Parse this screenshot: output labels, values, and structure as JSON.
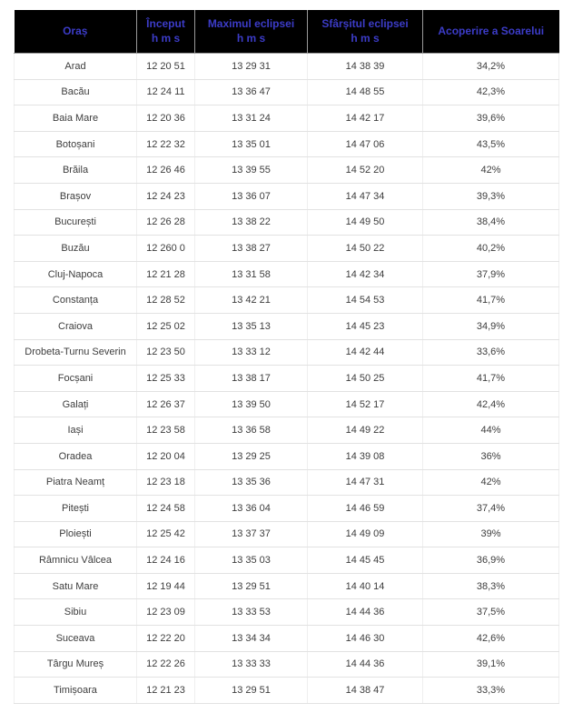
{
  "colors": {
    "header_bg": "#000000",
    "header_text": "#3c3cc8",
    "body_text": "#3d3d3d",
    "grid_horizontal": "#e2e2e2",
    "grid_vertical": "#efefef",
    "header_separator": "#9a9a9a"
  },
  "table": {
    "header": [
      {
        "label": "Oraș",
        "sub": ""
      },
      {
        "label": "Început",
        "sub": "h m s"
      },
      {
        "label": "Maximul eclipsei",
        "sub": "h m s"
      },
      {
        "label": "Sfârșitul eclipsei",
        "sub": "h m s"
      },
      {
        "label": "Acoperire a Soarelui",
        "sub": ""
      }
    ],
    "rows": [
      {
        "city": "Arad",
        "start": "12 20 51",
        "max": "13 29 31",
        "end": "14 38 39",
        "coverage": "34,2%"
      },
      {
        "city": "Bacău",
        "start": "12 24 11",
        "max": "13 36 47",
        "end": "14 48 55",
        "coverage": "42,3%"
      },
      {
        "city": "Baia Mare",
        "start": "12 20 36",
        "max": "13 31 24",
        "end": "14 42 17",
        "coverage": "39,6%"
      },
      {
        "city": "Botoșani",
        "start": "12 22 32",
        "max": "13 35 01",
        "end": "14 47 06",
        "coverage": "43,5%"
      },
      {
        "city": "Brăila",
        "start": "12 26 46",
        "max": "13 39 55",
        "end": "14 52 20",
        "coverage": "42%"
      },
      {
        "city": "Brașov",
        "start": "12 24 23",
        "max": "13 36 07",
        "end": "14 47 34",
        "coverage": "39,3%"
      },
      {
        "city": "București",
        "start": "12 26 28",
        "max": "13 38 22",
        "end": "14 49 50",
        "coverage": "38,4%"
      },
      {
        "city": "Buzău",
        "start": "12 260 0",
        "max": "13 38 27",
        "end": "14 50 22",
        "coverage": "40,2%"
      },
      {
        "city": "Cluj-Napoca",
        "start": "12 21 28",
        "max": "13 31 58",
        "end": "14 42 34",
        "coverage": "37,9%"
      },
      {
        "city": "Constanța",
        "start": "12 28 52",
        "max": "13 42 21",
        "end": "14 54 53",
        "coverage": "41,7%"
      },
      {
        "city": "Craiova",
        "start": "12 25 02",
        "max": "13 35 13",
        "end": "14 45 23",
        "coverage": "34,9%"
      },
      {
        "city": "Drobeta-Turnu Severin",
        "start": "12 23 50",
        "max": "13 33 12",
        "end": "14 42 44",
        "coverage": "33,6%"
      },
      {
        "city": "Focșani",
        "start": "12 25 33",
        "max": "13 38 17",
        "end": "14 50 25",
        "coverage": "41,7%"
      },
      {
        "city": "Galați",
        "start": "12 26 37",
        "max": "13 39 50",
        "end": "14 52 17",
        "coverage": "42,4%"
      },
      {
        "city": "Iași",
        "start": "12 23 58",
        "max": "13 36 58",
        "end": "14 49 22",
        "coverage": "44%"
      },
      {
        "city": "Oradea",
        "start": "12 20 04",
        "max": "13 29 25",
        "end": "14 39 08",
        "coverage": "36%"
      },
      {
        "city": "Piatra Neamț",
        "start": "12 23 18",
        "max": "13 35 36",
        "end": "14 47 31",
        "coverage": "42%"
      },
      {
        "city": "Pitești",
        "start": "12 24 58",
        "max": "13 36 04",
        "end": "14 46 59",
        "coverage": "37,4%"
      },
      {
        "city": "Ploiești",
        "start": "12 25 42",
        "max": "13 37 37",
        "end": "14 49 09",
        "coverage": "39%"
      },
      {
        "city": "Râmnicu Vâlcea",
        "start": "12 24 16",
        "max": "13 35 03",
        "end": "14 45 45",
        "coverage": "36,9%"
      },
      {
        "city": "Satu Mare",
        "start": "12 19 44",
        "max": "13 29 51",
        "end": "14 40 14",
        "coverage": "38,3%"
      },
      {
        "city": "Sibiu",
        "start": "12 23 09",
        "max": "13 33 53",
        "end": "14 44 36",
        "coverage": "37,5%"
      },
      {
        "city": "Suceava",
        "start": "12 22 20",
        "max": "13 34 34",
        "end": "14 46 30",
        "coverage": "42,6%"
      },
      {
        "city": "Târgu Mureș",
        "start": "12 22 26",
        "max": "13 33 33",
        "end": "14 44 36",
        "coverage": "39,1%"
      },
      {
        "city": "Timișoara",
        "start": "12 21 23",
        "max": "13 29 51",
        "end": "14 38 47",
        "coverage": "33,3%"
      }
    ]
  }
}
